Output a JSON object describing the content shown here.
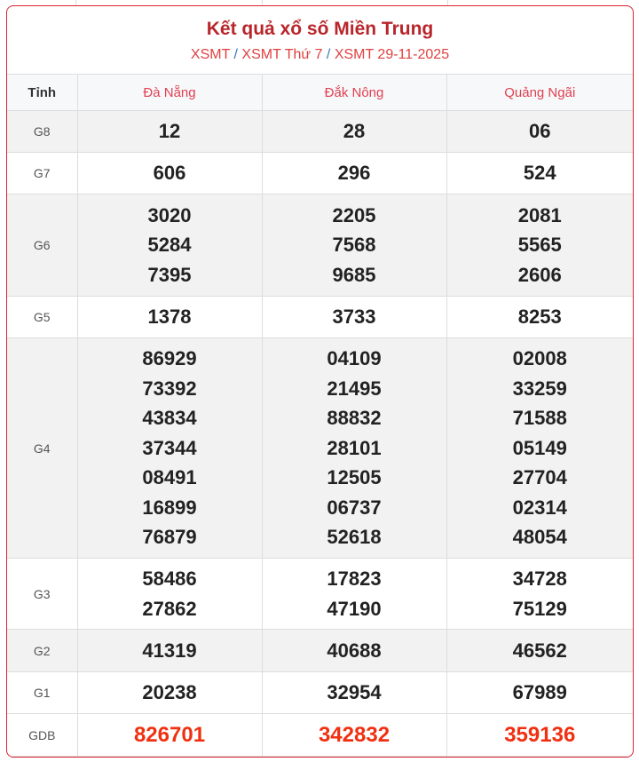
{
  "header": {
    "title": "Kết quả xổ số Miền Trung",
    "breadcrumb": [
      "XSMT",
      "XSMT Thứ 7",
      "XSMT 29-11-2025"
    ],
    "separator": "/"
  },
  "table": {
    "columns": [
      "Tỉnh",
      "Đà Nẵng",
      "Đắk Nông",
      "Quảng Ngãi"
    ],
    "rows": [
      {
        "label": "G8",
        "values": [
          [
            "12"
          ],
          [
            "28"
          ],
          [
            "06"
          ]
        ]
      },
      {
        "label": "G7",
        "values": [
          [
            "606"
          ],
          [
            "296"
          ],
          [
            "524"
          ]
        ]
      },
      {
        "label": "G6",
        "values": [
          [
            "3020",
            "5284",
            "7395"
          ],
          [
            "2205",
            "7568",
            "9685"
          ],
          [
            "2081",
            "5565",
            "2606"
          ]
        ]
      },
      {
        "label": "G5",
        "values": [
          [
            "1378"
          ],
          [
            "3733"
          ],
          [
            "8253"
          ]
        ]
      },
      {
        "label": "G4",
        "values": [
          [
            "86929",
            "73392",
            "43834",
            "37344",
            "08491",
            "16899",
            "76879"
          ],
          [
            "04109",
            "21495",
            "88832",
            "28101",
            "12505",
            "06737",
            "52618"
          ],
          [
            "02008",
            "33259",
            "71588",
            "05149",
            "27704",
            "02314",
            "48054"
          ]
        ]
      },
      {
        "label": "G3",
        "values": [
          [
            "58486",
            "27862"
          ],
          [
            "17823",
            "47190"
          ],
          [
            "34728",
            "75129"
          ]
        ]
      },
      {
        "label": "G2",
        "values": [
          [
            "41319"
          ],
          [
            "40688"
          ],
          [
            "46562"
          ]
        ]
      },
      {
        "label": "G1",
        "values": [
          [
            "20238"
          ],
          [
            "32954"
          ],
          [
            "67989"
          ]
        ]
      },
      {
        "label": "GDB",
        "values": [
          [
            "826701"
          ],
          [
            "342832"
          ],
          [
            "359136"
          ]
        ]
      }
    ]
  },
  "colors": {
    "accent": "#e02030",
    "title": "#b8262b",
    "special_prize": "#f03010"
  }
}
